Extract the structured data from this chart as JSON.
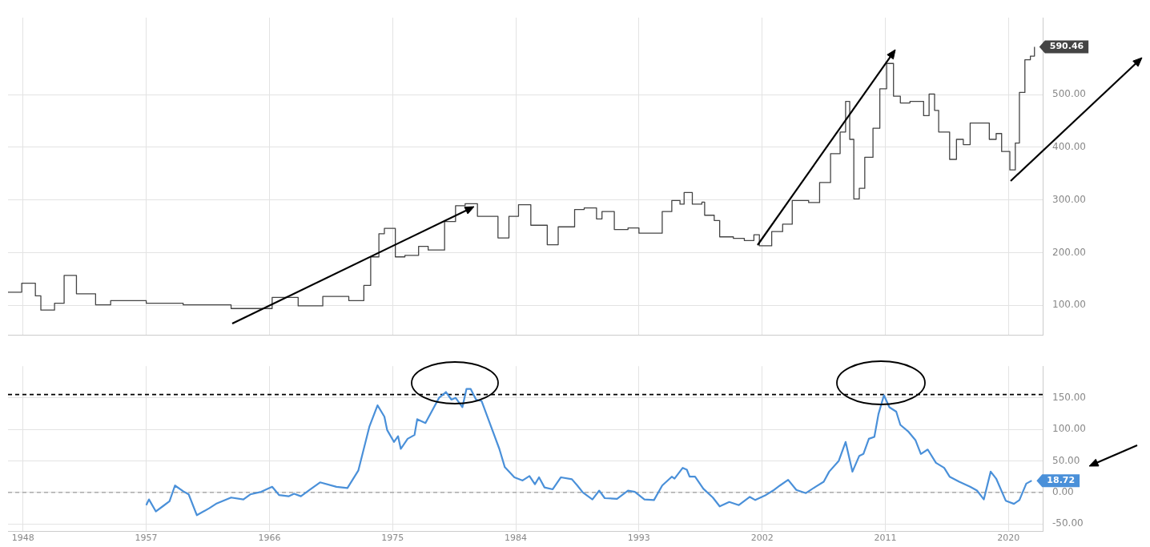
{
  "chart_data": [
    {
      "type": "step",
      "xlim": [
        1946.9,
        2022.5
      ],
      "xticks": [
        1948,
        1957,
        1966,
        1975,
        1984,
        1993,
        2002,
        2011,
        2020
      ],
      "ylim": [
        43,
        646
      ],
      "yticks": [
        {
          "value": 100,
          "label": "100.00"
        },
        {
          "value": 200,
          "label": "200.00"
        },
        {
          "value": 300,
          "label": "300.00"
        },
        {
          "value": 400,
          "label": "400.00"
        },
        {
          "value": 500,
          "label": "500.00"
        }
      ],
      "grid": true,
      "tick_labels": "y",
      "series": [
        {
          "color": "#444444",
          "x": [
            1946.9,
            1947.9,
            1948.9,
            1949.3,
            1950.3,
            1951.0,
            1951.9,
            1953.3,
            1954.4,
            1957.0,
            1959.7,
            1963.2,
            1966.2,
            1968.1,
            1969.9,
            1971.8,
            1972.9,
            1973.4,
            1974.0,
            1974.4,
            1975.2,
            1975.9,
            1976.9,
            1977.6,
            1978.8,
            1979.6,
            1980.3,
            1981.2,
            1982.7,
            1983.5,
            1984.2,
            1985.1,
            1986.3,
            1987.1,
            1988.3,
            1989.0,
            1989.9,
            1990.3,
            1991.2,
            1992.2,
            1993.0,
            1993.7,
            1994.7,
            1995.4,
            1996.0,
            1996.3,
            1996.9,
            1997.6,
            1997.8,
            1998.5,
            1998.9,
            1999.9,
            2000.7,
            2001.4,
            2001.8,
            2002.7,
            2003.5,
            2004.2,
            2005.4,
            2006.2,
            2007.0,
            2007.7,
            2008.1,
            2008.4,
            2008.7,
            2009.1,
            2009.5,
            2010.1,
            2010.6,
            2011.1,
            2011.6,
            2012.1,
            2012.8,
            2013.8,
            2014.2,
            2014.6,
            2014.9,
            2015.7,
            2016.2,
            2016.7,
            2017.2,
            2018.2,
            2018.6,
            2019.1,
            2019.5,
            2020.1,
            2020.5,
            2020.8,
            2021.2,
            2021.6,
            2021.9
          ],
          "values": [
            125,
            142,
            118,
            91,
            104,
            157,
            122,
            101,
            109,
            104,
            101,
            94,
            115,
            99,
            117,
            109,
            138,
            192,
            236,
            246,
            192,
            195,
            212,
            205,
            259,
            289,
            293,
            269,
            228,
            269,
            291,
            252,
            215,
            249,
            282,
            285,
            264,
            278,
            244,
            247,
            237,
            237,
            278,
            299,
            292,
            314,
            292,
            296,
            271,
            261,
            230,
            227,
            223,
            234,
            213,
            240,
            254,
            299,
            295,
            333,
            388,
            429,
            487,
            415,
            302,
            322,
            381,
            436,
            511,
            559,
            497,
            484,
            487,
            460,
            501,
            470,
            429,
            377,
            415,
            405,
            446,
            446,
            415,
            426,
            392,
            357,
            408,
            504,
            566,
            573,
            590.46
          ],
          "value_labels": [
            null,
            null,
            null,
            null,
            null,
            null,
            null,
            null,
            null,
            null,
            null,
            null,
            null,
            null,
            null,
            null,
            null,
            null,
            null,
            null,
            null,
            null,
            null,
            null,
            null,
            null,
            null,
            null,
            null,
            null,
            null,
            null,
            null,
            null,
            null,
            null,
            null,
            null,
            null,
            null,
            null,
            null,
            null,
            null,
            null,
            null,
            null,
            null,
            null,
            null,
            null,
            null,
            null,
            null,
            null,
            null,
            null,
            null,
            null,
            null,
            null,
            null,
            null,
            null,
            null,
            null,
            null,
            null,
            null,
            null,
            null,
            null,
            null,
            null,
            null,
            null,
            null,
            null,
            null,
            null,
            null,
            null,
            null,
            null,
            null,
            null,
            null,
            null,
            null,
            null,
            "590.46"
          ]
        }
      ]
    },
    {
      "type": "line",
      "xlim": [
        1946.9,
        2022.5
      ],
      "xticks": [
        1948,
        1957,
        1966,
        1975,
        1984,
        1993,
        2002,
        2011,
        2020
      ],
      "ylim": [
        -62,
        200
      ],
      "yticks": [
        {
          "value": -50,
          "label": "-50.00"
        },
        {
          "value": 0,
          "label": "0.00"
        },
        {
          "value": 50,
          "label": "50.00"
        },
        {
          "value": 100,
          "label": "100.00"
        },
        {
          "value": 150,
          "label": "150.00"
        }
      ],
      "grid": true,
      "ref_lines": [
        {
          "axis": "y",
          "value": 0,
          "color": "#888888",
          "line_style": "dashed"
        },
        {
          "axis": "y",
          "value": 155,
          "color": "#000000",
          "line_style": "dashed"
        }
      ],
      "series": [
        {
          "color": "#4a90d9",
          "x": [
            1957.0,
            1957.2,
            1957.7,
            1958.2,
            1958.7,
            1959.1,
            1959.7,
            1960.1,
            1960.7,
            1961.6,
            1962.1,
            1963.2,
            1964.1,
            1964.6,
            1965.4,
            1966.2,
            1966.7,
            1967.4,
            1967.8,
            1968.3,
            1969.0,
            1969.7,
            1970.9,
            1971.7,
            1972.5,
            1973.3,
            1973.9,
            1974.4,
            1974.6,
            1975.1,
            1975.4,
            1975.6,
            1976.1,
            1976.6,
            1976.8,
            1977.4,
            1978.4,
            1978.9,
            1979.3,
            1979.6,
            1980.1,
            1980.4,
            1980.7,
            1981.1,
            1981.5,
            1982.2,
            1982.8,
            1983.2,
            1983.9,
            1984.5,
            1985.0,
            1985.4,
            1985.7,
            1986.1,
            1986.7,
            1987.3,
            1988.1,
            1988.5,
            1988.9,
            1989.6,
            1990.1,
            1990.5,
            1991.4,
            1992.2,
            1992.7,
            1993.4,
            1994.1,
            1994.7,
            1995.4,
            1995.6,
            1996.2,
            1996.5,
            1996.7,
            1997.1,
            1997.7,
            1998.4,
            1998.9,
            1999.6,
            2000.3,
            2001.1,
            2001.5,
            2002.2,
            2002.8,
            2003.3,
            2003.9,
            2004.5,
            2005.2,
            2005.9,
            2006.5,
            2006.9,
            2007.6,
            2008.1,
            2008.6,
            2009.1,
            2009.4,
            2009.8,
            2010.2,
            2010.5,
            2010.9,
            2011.3,
            2011.8,
            2012.1,
            2012.7,
            2013.2,
            2013.6,
            2014.1,
            2014.7,
            2015.3,
            2015.7,
            2016.4,
            2017.2,
            2017.7,
            2018.2,
            2018.7,
            2019.1,
            2019.8,
            2020.4,
            2020.8,
            2021.3,
            2021.7
          ],
          "values": [
            -20,
            -11,
            -30,
            -22,
            -14,
            11,
            2,
            -3,
            -36,
            -25,
            -18,
            -8,
            -11,
            -3,
            1,
            9,
            -4,
            -6,
            -2,
            -6,
            5,
            16,
            9,
            7,
            35,
            104,
            138,
            120,
            99,
            80,
            89,
            69,
            85,
            91,
            116,
            110,
            150,
            159,
            147,
            150,
            135,
            164,
            164,
            147,
            145,
            104,
            69,
            40,
            24,
            19,
            26,
            13,
            24,
            8,
            5,
            24,
            21,
            11,
            0,
            -11,
            3,
            -9,
            -10,
            3,
            1,
            -11,
            -12,
            11,
            25,
            22,
            39,
            36,
            25,
            25,
            6,
            -8,
            -22,
            -15,
            -20,
            -7,
            -12,
            -5,
            3,
            11,
            20,
            4,
            -1,
            9,
            17,
            33,
            50,
            80,
            33,
            58,
            61,
            85,
            88,
            124,
            154,
            135,
            128,
            107,
            96,
            83,
            61,
            68,
            47,
            39,
            25,
            17,
            9,
            3,
            -11,
            33,
            22,
            -13,
            -18,
            -12,
            14,
            18.72
          ],
          "value_labels": [
            null,
            null,
            null,
            null,
            null,
            null,
            null,
            null,
            null,
            null,
            null,
            null,
            null,
            null,
            null,
            null,
            null,
            null,
            null,
            null,
            null,
            null,
            null,
            null,
            null,
            null,
            null,
            null,
            null,
            null,
            null,
            null,
            null,
            null,
            null,
            null,
            null,
            null,
            null,
            null,
            null,
            null,
            null,
            null,
            null,
            null,
            null,
            null,
            null,
            null,
            null,
            null,
            null,
            null,
            null,
            null,
            null,
            null,
            null,
            null,
            null,
            null,
            null,
            null,
            null,
            null,
            null,
            null,
            null,
            null,
            null,
            null,
            null,
            null,
            null,
            null,
            null,
            null,
            null,
            null,
            null,
            null,
            null,
            null,
            null,
            null,
            null,
            null,
            null,
            null,
            null,
            null,
            null,
            null,
            null,
            null,
            null,
            null,
            null,
            null,
            null,
            null,
            null,
            null,
            null,
            null,
            null,
            null,
            null,
            null,
            null,
            null,
            null,
            null,
            null,
            null,
            null,
            null,
            null,
            "18.72"
          ]
        }
      ]
    }
  ]
}
